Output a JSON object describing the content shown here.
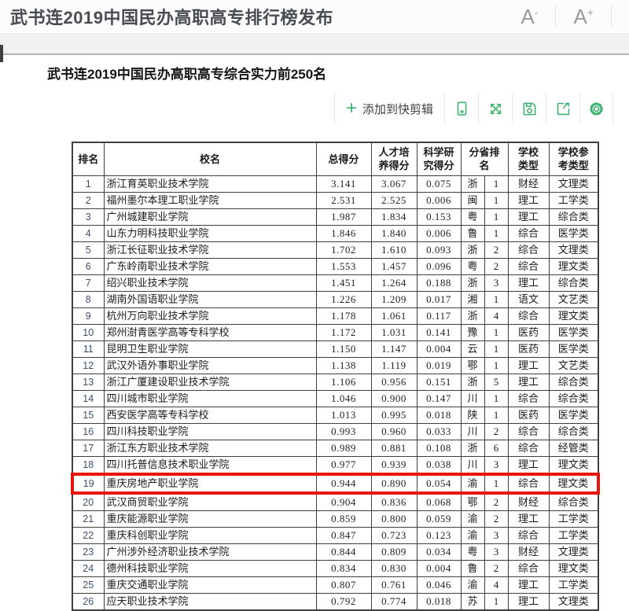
{
  "titlebar": {
    "title": "武书连2019中国民办高职高专排行榜发布",
    "font_decrease": {
      "base": "A",
      "sign": "-"
    },
    "font_increase": {
      "base": "A",
      "sign": "+"
    }
  },
  "content": {
    "heading": "武书连2019中国民办高职高专综合实力前250名"
  },
  "toolbar": {
    "plus_icon": "+",
    "add_clip_label": "添加到快剪辑",
    "icons": [
      "phone-icon",
      "fullscreen-icon",
      "save-icon",
      "share-icon",
      "gear-icon"
    ]
  },
  "colors": {
    "accent_green": "#3eb370",
    "highlight_red": "#e8150c"
  },
  "table": {
    "headers": {
      "rank": "排名",
      "school": "校名",
      "total": "总得分",
      "talent": {
        "line1": "人才培",
        "line2": "养得分"
      },
      "research": {
        "line1": "科学研",
        "line2": "究得分"
      },
      "province_rank": {
        "line1": "分省排",
        "line2": "名"
      },
      "type": {
        "line1": "学校",
        "line2": "类型"
      },
      "ref_type": {
        "line1": "学校参",
        "line2": "考类型"
      }
    },
    "highlight_rank": "19",
    "rows": [
      {
        "rank": "1",
        "school": "浙江育英职业技术学院",
        "total": "3.141",
        "talent": "3.067",
        "research": "0.075",
        "province": "浙",
        "province_rank": "1",
        "type": "财经",
        "ref_type": "文理类"
      },
      {
        "rank": "2",
        "school": "福州墨尔本理工职业学院",
        "total": "2.531",
        "talent": "2.525",
        "research": "0.006",
        "province": "闽",
        "province_rank": "1",
        "type": "理工",
        "ref_type": "工学类"
      },
      {
        "rank": "3",
        "school": "广州城建职业学院",
        "total": "1.987",
        "talent": "1.834",
        "research": "0.153",
        "province": "粤",
        "province_rank": "1",
        "type": "理工",
        "ref_type": "综合类"
      },
      {
        "rank": "4",
        "school": "山东力明科技职业学院",
        "total": "1.846",
        "talent": "1.840",
        "research": "0.006",
        "province": "鲁",
        "province_rank": "1",
        "type": "综合",
        "ref_type": "医学类"
      },
      {
        "rank": "5",
        "school": "浙江长征职业技术学院",
        "total": "1.702",
        "talent": "1.610",
        "research": "0.093",
        "province": "浙",
        "province_rank": "2",
        "type": "综合",
        "ref_type": "文理类"
      },
      {
        "rank": "6",
        "school": "广东岭南职业技术学院",
        "total": "1.553",
        "talent": "1.457",
        "research": "0.096",
        "province": "粤",
        "province_rank": "2",
        "type": "综合",
        "ref_type": "理文类"
      },
      {
        "rank": "7",
        "school": "绍兴职业技术学院",
        "total": "1.451",
        "talent": "1.264",
        "research": "0.188",
        "province": "浙",
        "province_rank": "3",
        "type": "理工",
        "ref_type": "综合类"
      },
      {
        "rank": "8",
        "school": "湖南外国语职业学院",
        "total": "1.226",
        "talent": "1.209",
        "research": "0.017",
        "province": "湘",
        "province_rank": "1",
        "type": "语文",
        "ref_type": "文艺类"
      },
      {
        "rank": "9",
        "school": "杭州万向职业技术学院",
        "total": "1.178",
        "talent": "1.061",
        "research": "0.117",
        "province": "浙",
        "province_rank": "4",
        "type": "综合",
        "ref_type": "理文类"
      },
      {
        "rank": "10",
        "school": "郑州澍青医学高等专科学校",
        "total": "1.172",
        "talent": "1.031",
        "research": "0.141",
        "province": "豫",
        "province_rank": "1",
        "type": "医药",
        "ref_type": "医学类"
      },
      {
        "rank": "11",
        "school": "昆明卫生职业学院",
        "total": "1.150",
        "talent": "1.147",
        "research": "0.004",
        "province": "云",
        "province_rank": "1",
        "type": "医药",
        "ref_type": "医学类"
      },
      {
        "rank": "12",
        "school": "武汉外语外事职业学院",
        "total": "1.138",
        "talent": "1.119",
        "research": "0.019",
        "province": "鄂",
        "province_rank": "1",
        "type": "理工",
        "ref_type": "文艺类"
      },
      {
        "rank": "13",
        "school": "浙江广厦建设职业技术学院",
        "total": "1.106",
        "talent": "0.956",
        "research": "0.151",
        "province": "浙",
        "province_rank": "5",
        "type": "理工",
        "ref_type": "综合类"
      },
      {
        "rank": "14",
        "school": "四川城市职业学院",
        "total": "1.046",
        "talent": "0.900",
        "research": "0.147",
        "province": "川",
        "province_rank": "1",
        "type": "综合",
        "ref_type": "综合类"
      },
      {
        "rank": "15",
        "school": "西安医学高等专科学校",
        "total": "1.013",
        "talent": "0.995",
        "research": "0.018",
        "province": "陕",
        "province_rank": "1",
        "type": "医药",
        "ref_type": "医学类"
      },
      {
        "rank": "16",
        "school": "四川科技职业学院",
        "total": "0.993",
        "talent": "0.960",
        "research": "0.033",
        "province": "川",
        "province_rank": "2",
        "type": "综合",
        "ref_type": "综合类"
      },
      {
        "rank": "17",
        "school": "浙江东方职业技术学院",
        "total": "0.989",
        "talent": "0.881",
        "research": "0.108",
        "province": "浙",
        "province_rank": "6",
        "type": "综合",
        "ref_type": "经管类"
      },
      {
        "rank": "18",
        "school": "四川托普信息技术职业学院",
        "total": "0.977",
        "talent": "0.939",
        "research": "0.038",
        "province": "川",
        "province_rank": "3",
        "type": "理工",
        "ref_type": "理文类"
      },
      {
        "rank": "19",
        "school": "重庆房地产职业学院",
        "total": "0.944",
        "talent": "0.890",
        "research": "0.054",
        "province": "渝",
        "province_rank": "1",
        "type": "综合",
        "ref_type": "理文类"
      },
      {
        "rank": "20",
        "school": "武汉商贸职业学院",
        "total": "0.904",
        "talent": "0.836",
        "research": "0.068",
        "province": "鄂",
        "province_rank": "2",
        "type": "财经",
        "ref_type": "综合类"
      },
      {
        "rank": "21",
        "school": "重庆能源职业学院",
        "total": "0.859",
        "talent": "0.800",
        "research": "0.059",
        "province": "渝",
        "province_rank": "2",
        "type": "理工",
        "ref_type": "工学类"
      },
      {
        "rank": "22",
        "school": "重庆科创职业学院",
        "total": "0.847",
        "talent": "0.723",
        "research": "0.123",
        "province": "渝",
        "province_rank": "3",
        "type": "综合",
        "ref_type": "工学类"
      },
      {
        "rank": "23",
        "school": "广州涉外经济职业技术学院",
        "total": "0.844",
        "talent": "0.809",
        "research": "0.034",
        "province": "粤",
        "province_rank": "3",
        "type": "财经",
        "ref_type": "文理类"
      },
      {
        "rank": "24",
        "school": "德州科技职业学院",
        "total": "0.834",
        "talent": "0.830",
        "research": "0.004",
        "province": "鲁",
        "province_rank": "2",
        "type": "综合",
        "ref_type": "理文类"
      },
      {
        "rank": "25",
        "school": "重庆交通职业学院",
        "total": "0.807",
        "talent": "0.761",
        "research": "0.046",
        "province": "渝",
        "province_rank": "4",
        "type": "理工",
        "ref_type": "工学类"
      },
      {
        "rank": "26",
        "school": "应天职业技术学院",
        "total": "0.792",
        "talent": "0.774",
        "research": "0.018",
        "province": "苏",
        "province_rank": "1",
        "type": "理工",
        "ref_type": "文理类"
      }
    ]
  }
}
